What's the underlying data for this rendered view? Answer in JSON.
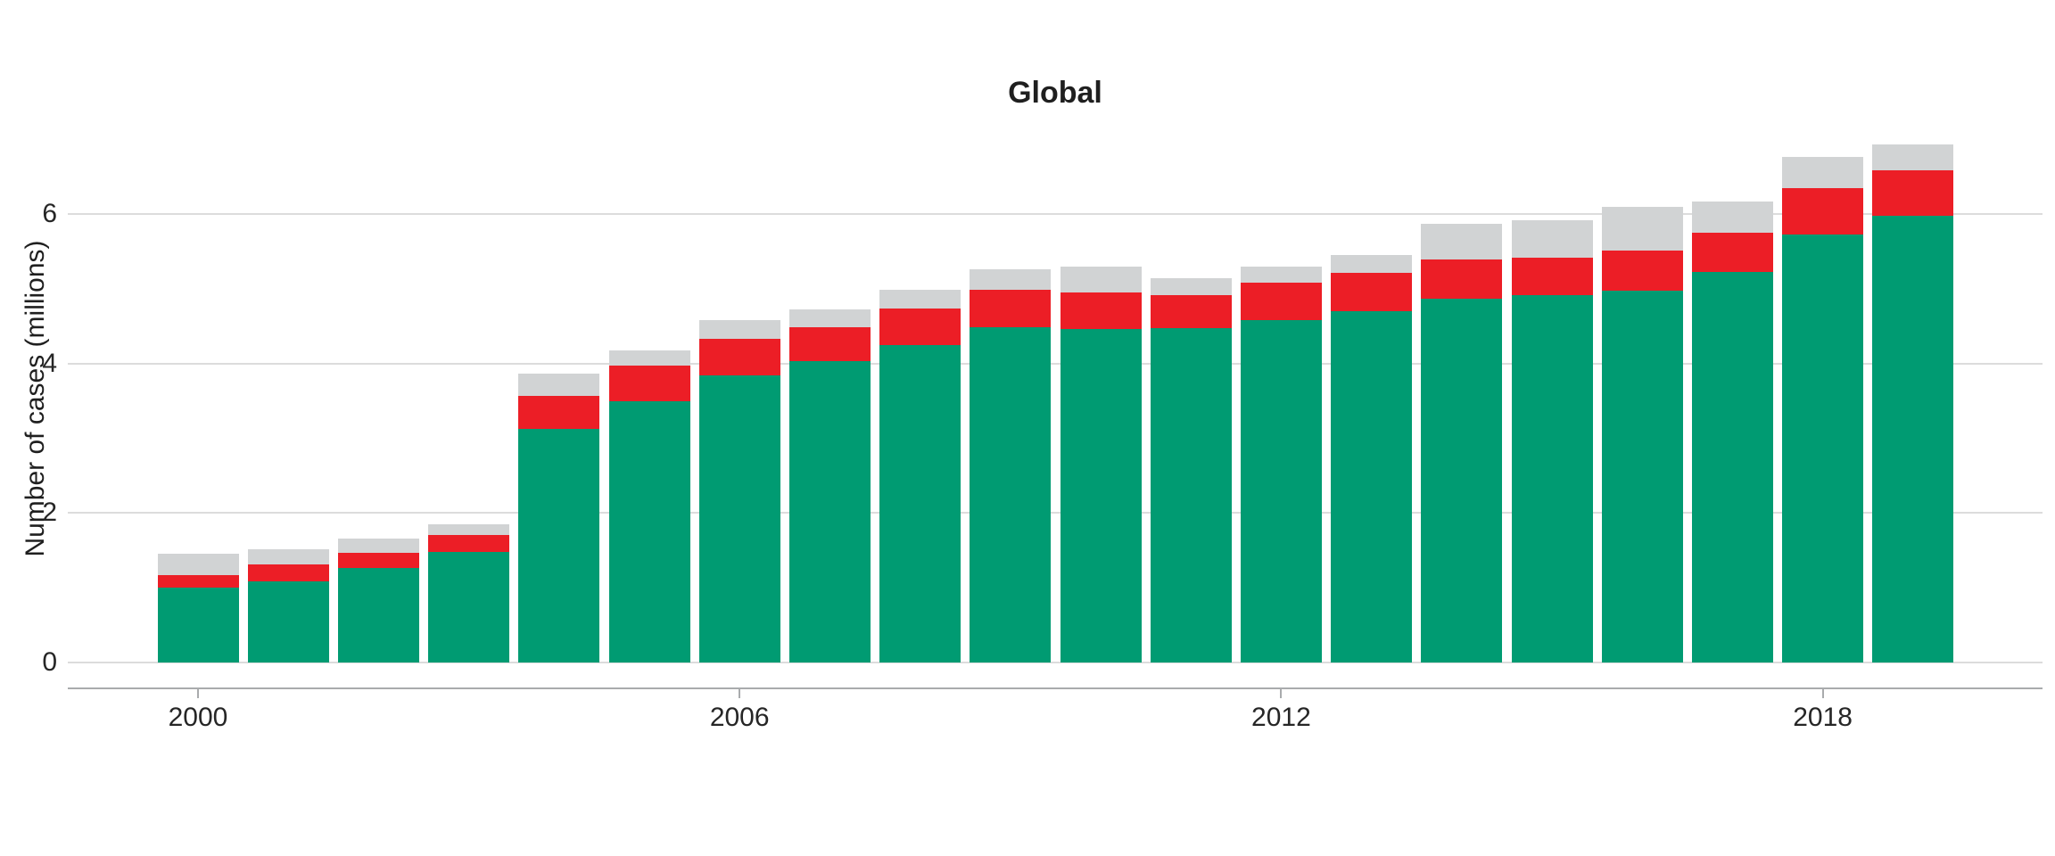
{
  "title": "Global",
  "y_axis_title": "Number of cases (millions)",
  "colors": {
    "green": "#009B72",
    "red": "#EC1E26",
    "gray": "#D1D3D4",
    "gridline": "#DCDCDC",
    "axis_line": "#A9ABAD",
    "text": "#262626"
  },
  "chart_data": {
    "type": "bar",
    "stacked": true,
    "title": "Global",
    "xlabel": "",
    "ylabel": "Number of cases (millions)",
    "categories": [
      2000,
      2001,
      2002,
      2003,
      2004,
      2005,
      2006,
      2007,
      2008,
      2009,
      2010,
      2011,
      2012,
      2013,
      2014,
      2015,
      2016,
      2017,
      2018,
      2019
    ],
    "series": [
      {
        "name": "green-bottom-segment",
        "color": "#009B72",
        "values": [
          1.0,
          1.09,
          1.26,
          1.48,
          3.13,
          3.5,
          3.84,
          4.03,
          4.25,
          4.49,
          4.46,
          4.47,
          4.58,
          4.7,
          4.87,
          4.91,
          4.97,
          5.22,
          5.73,
          5.98
        ]
      },
      {
        "name": "red-middle-segment",
        "color": "#EC1E26",
        "values": [
          0.17,
          0.22,
          0.21,
          0.23,
          0.43,
          0.47,
          0.49,
          0.46,
          0.49,
          0.5,
          0.49,
          0.44,
          0.5,
          0.51,
          0.52,
          0.51,
          0.54,
          0.53,
          0.62,
          0.6
        ]
      },
      {
        "name": "gray-top-segment",
        "color": "#D1D3D4",
        "values": [
          0.28,
          0.2,
          0.19,
          0.14,
          0.3,
          0.2,
          0.25,
          0.23,
          0.25,
          0.27,
          0.34,
          0.23,
          0.21,
          0.24,
          0.48,
          0.5,
          0.59,
          0.41,
          0.41,
          0.35
        ]
      }
    ],
    "totals": [
      1.45,
      1.51,
      1.66,
      1.85,
      3.86,
      4.17,
      4.58,
      4.72,
      4.99,
      5.26,
      5.29,
      5.14,
      5.29,
      5.45,
      5.87,
      5.92,
      6.1,
      6.16,
      6.76,
      6.93
    ],
    "ylim": [
      0,
      7.1
    ],
    "yticks": [
      0,
      2,
      4,
      6
    ],
    "ytick_labels": [
      "0",
      "2",
      "4",
      "6"
    ],
    "xticks": [
      2000,
      2006,
      2012,
      2018
    ],
    "xtick_labels": [
      "2000",
      "2006",
      "2012",
      "2018"
    ],
    "grid": "horizontal",
    "legend": "none"
  }
}
